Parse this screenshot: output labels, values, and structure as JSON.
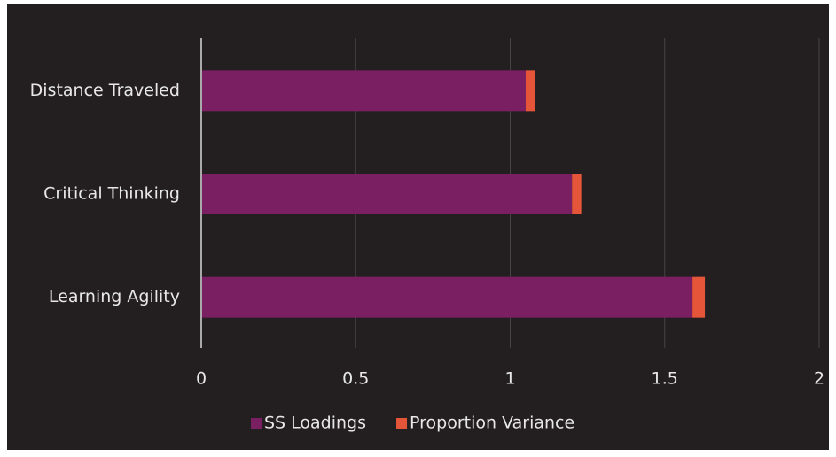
{
  "chart_data": {
    "type": "stacked_bar",
    "orientation": "horizontal",
    "categories": [
      "Distance Traveled",
      "Critical Thinking",
      "Learning Agility"
    ],
    "series": [
      {
        "name": "SS Loadings",
        "color": "#7b1f63",
        "values": [
          1.05,
          1.2,
          1.59
        ]
      },
      {
        "name": "Proportion Variance",
        "color": "#e4553a",
        "values": [
          0.03,
          0.03,
          0.04
        ]
      }
    ],
    "xlim": [
      0,
      2
    ],
    "xticks": [
      0,
      0.5,
      1,
      1.5,
      2
    ],
    "grid": true,
    "legend": "bottom"
  }
}
